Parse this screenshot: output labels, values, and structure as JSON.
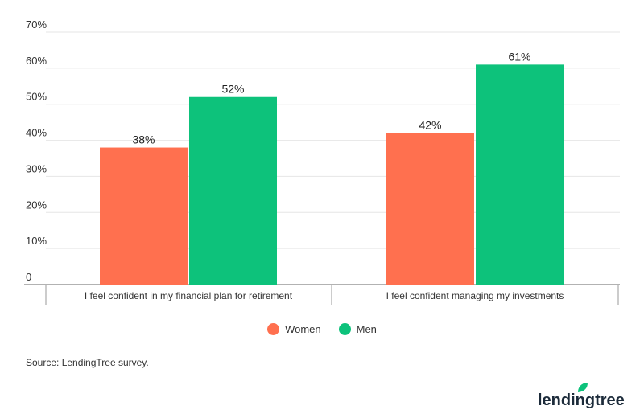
{
  "chart_data": {
    "type": "bar",
    "categories": [
      "I feel confident in my financial plan for retirement",
      "I feel confident managing my investments"
    ],
    "series": [
      {
        "name": "Women",
        "values": [
          38,
          42
        ],
        "color": "#FF704F"
      },
      {
        "name": "Men",
        "values": [
          52,
          61
        ],
        "color": "#0DC27B"
      }
    ],
    "data_labels": [
      [
        "38%",
        "42%"
      ],
      [
        "52%",
        "61%"
      ]
    ],
    "ylim": [
      0,
      70
    ],
    "yticks": [
      0,
      10,
      20,
      30,
      40,
      50,
      60,
      70
    ],
    "ytick_labels": [
      "0",
      "10%",
      "20%",
      "30%",
      "40%",
      "50%",
      "60%",
      "70%"
    ],
    "grid": true,
    "legend": "bottom"
  },
  "source": "Source: LendingTree survey.",
  "logo": "lendingtree"
}
